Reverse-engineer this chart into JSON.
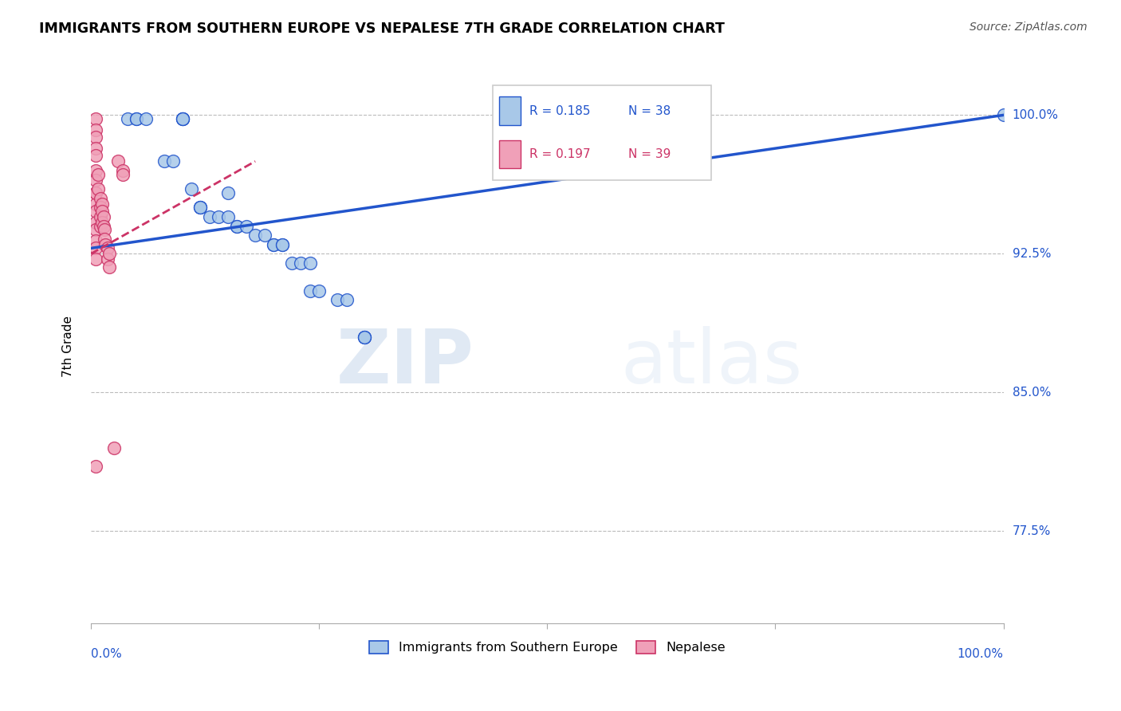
{
  "title": "IMMIGRANTS FROM SOUTHERN EUROPE VS NEPALESE 7TH GRADE CORRELATION CHART",
  "source": "Source: ZipAtlas.com",
  "ylabel": "7th Grade",
  "y_tick_labels": [
    "77.5%",
    "85.0%",
    "92.5%",
    "100.0%"
  ],
  "y_tick_values": [
    0.775,
    0.85,
    0.925,
    1.0
  ],
  "x_range": [
    0.0,
    1.0
  ],
  "y_range": [
    0.725,
    1.025
  ],
  "blue_R": "0.185",
  "blue_N": "38",
  "pink_R": "0.197",
  "pink_N": "39",
  "blue_color": "#a8c8e8",
  "pink_color": "#f0a0b8",
  "blue_line_color": "#2255cc",
  "pink_line_color": "#cc3366",
  "legend_label_blue": "Immigrants from Southern Europe",
  "legend_label_pink": "Nepalese",
  "watermark_zip": "ZIP",
  "watermark_atlas": "atlas",
  "blue_scatter_x": [
    0.04,
    0.05,
    0.05,
    0.06,
    0.08,
    0.09,
    0.1,
    0.1,
    0.1,
    0.1,
    0.11,
    0.12,
    0.12,
    0.12,
    0.13,
    0.14,
    0.15,
    0.15,
    0.16,
    0.16,
    0.17,
    0.18,
    0.19,
    0.2,
    0.2,
    0.21,
    0.21,
    0.22,
    0.23,
    0.24,
    0.24,
    0.25,
    0.27,
    0.28,
    0.3,
    0.3,
    0.3,
    1.0
  ],
  "blue_scatter_y": [
    0.998,
    0.998,
    0.998,
    0.998,
    0.975,
    0.975,
    0.998,
    0.998,
    0.998,
    0.998,
    0.96,
    0.95,
    0.95,
    0.95,
    0.945,
    0.945,
    0.945,
    0.958,
    0.94,
    0.94,
    0.94,
    0.935,
    0.935,
    0.93,
    0.93,
    0.93,
    0.93,
    0.92,
    0.92,
    0.92,
    0.905,
    0.905,
    0.9,
    0.9,
    0.88,
    0.88,
    0.88,
    1.0
  ],
  "pink_scatter_x": [
    0.005,
    0.005,
    0.005,
    0.005,
    0.005,
    0.005,
    0.005,
    0.005,
    0.005,
    0.005,
    0.005,
    0.005,
    0.005,
    0.005,
    0.005,
    0.005,
    0.008,
    0.008,
    0.01,
    0.01,
    0.01,
    0.01,
    0.012,
    0.012,
    0.012,
    0.014,
    0.014,
    0.015,
    0.015,
    0.016,
    0.018,
    0.018,
    0.02,
    0.02,
    0.025,
    0.03,
    0.035,
    0.035,
    0.005
  ],
  "pink_scatter_y": [
    0.998,
    0.992,
    0.988,
    0.982,
    0.978,
    0.97,
    0.965,
    0.958,
    0.952,
    0.948,
    0.942,
    0.938,
    0.932,
    0.928,
    0.922,
    0.958,
    0.968,
    0.96,
    0.955,
    0.95,
    0.945,
    0.94,
    0.952,
    0.948,
    0.942,
    0.945,
    0.94,
    0.938,
    0.933,
    0.93,
    0.928,
    0.922,
    0.925,
    0.918,
    0.82,
    0.975,
    0.97,
    0.968,
    0.81
  ],
  "blue_line_x": [
    0.0,
    1.0
  ],
  "blue_line_y_start": 0.928,
  "blue_line_y_end": 1.0,
  "pink_line_x": [
    0.0,
    0.18
  ],
  "pink_line_y_start": 0.925,
  "pink_line_y_end": 0.975
}
